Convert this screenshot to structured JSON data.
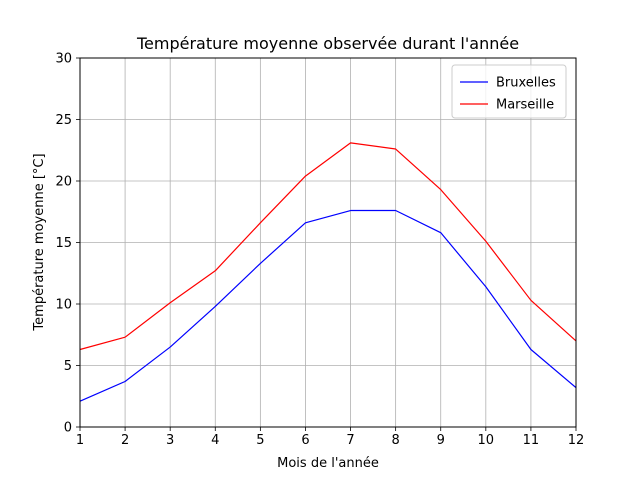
{
  "chart_data": {
    "type": "line",
    "title": "Température moyenne observée durant l'année",
    "xlabel": "Mois de l'année",
    "ylabel": "Température moyenne [°C]",
    "x": [
      1,
      2,
      3,
      4,
      5,
      6,
      7,
      8,
      9,
      10,
      11,
      12
    ],
    "xlim": [
      1,
      12
    ],
    "ylim": [
      0,
      30
    ],
    "xticks": [
      "1",
      "2",
      "3",
      "4",
      "5",
      "6",
      "7",
      "8",
      "9",
      "10",
      "11",
      "12"
    ],
    "yticks": [
      "0",
      "5",
      "10",
      "15",
      "20",
      "25",
      "30"
    ],
    "grid": true,
    "legend_position": "top-right",
    "series": [
      {
        "name": "Bruxelles",
        "color": "#0000ff",
        "values": [
          2.1,
          3.7,
          6.5,
          9.8,
          13.3,
          16.6,
          17.6,
          17.6,
          15.8,
          11.4,
          6.3,
          3.2
        ]
      },
      {
        "name": "Marseille",
        "color": "#ff0000",
        "values": [
          6.3,
          7.3,
          10.1,
          12.7,
          16.6,
          20.4,
          23.1,
          22.6,
          19.3,
          15.1,
          10.3,
          7.0
        ]
      }
    ]
  }
}
